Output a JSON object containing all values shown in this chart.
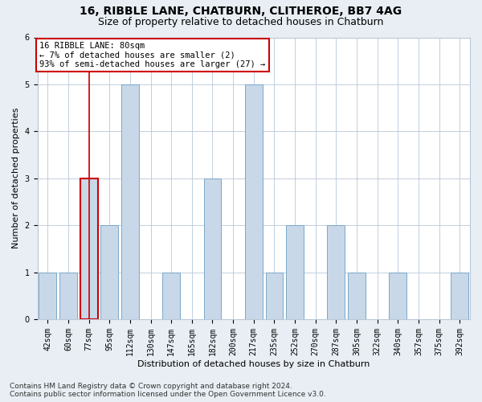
{
  "title": "16, RIBBLE LANE, CHATBURN, CLITHEROE, BB7 4AG",
  "subtitle": "Size of property relative to detached houses in Chatburn",
  "xlabel": "Distribution of detached houses by size in Chatburn",
  "ylabel": "Number of detached properties",
  "categories": [
    "42sqm",
    "60sqm",
    "77sqm",
    "95sqm",
    "112sqm",
    "130sqm",
    "147sqm",
    "165sqm",
    "182sqm",
    "200sqm",
    "217sqm",
    "235sqm",
    "252sqm",
    "270sqm",
    "287sqm",
    "305sqm",
    "322sqm",
    "340sqm",
    "357sqm",
    "375sqm",
    "392sqm"
  ],
  "values": [
    1,
    1,
    3,
    2,
    5,
    0,
    1,
    0,
    3,
    0,
    5,
    1,
    2,
    0,
    2,
    1,
    0,
    1,
    0,
    0,
    1
  ],
  "highlight_index": 2,
  "bar_color": "#c8d8e8",
  "bar_edge_color": "#7aa8c8",
  "highlight_bar_edge_color": "#cc0000",
  "highlight_line_color": "#cc0000",
  "annotation_box_edge_color": "#cc0000",
  "annotation_text": "16 RIBBLE LANE: 80sqm\n← 7% of detached houses are smaller (2)\n93% of semi-detached houses are larger (27) →",
  "ylim": [
    0,
    6
  ],
  "yticks": [
    0,
    1,
    2,
    3,
    4,
    5,
    6
  ],
  "footnote": "Contains HM Land Registry data © Crown copyright and database right 2024.\nContains public sector information licensed under the Open Government Licence v3.0.",
  "bg_color": "#e8eef4",
  "plot_bg_color": "#ffffff",
  "grid_color": "#b8c8d8",
  "title_fontsize": 10,
  "subtitle_fontsize": 9,
  "axis_label_fontsize": 8,
  "tick_fontsize": 7,
  "annotation_fontsize": 7.5,
  "footnote_fontsize": 6.5
}
